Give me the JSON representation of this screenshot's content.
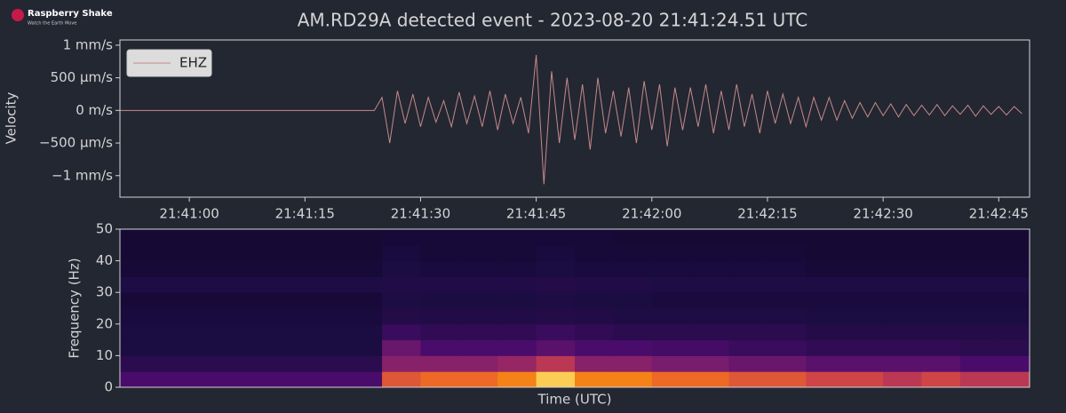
{
  "logo": {
    "name": "Raspberry Shake",
    "tagline": "Watch the Earth Move"
  },
  "chart_data": [
    {
      "type": "line",
      "title": "AM.RD29A detected event - 2023-08-20 21:41:24.51 UTC",
      "y_label": "Velocity",
      "legend": "upper left",
      "xlim": [
        "21:40:51",
        "21:42:49"
      ],
      "xticks": [
        "21:41:00",
        "21:41:15",
        "21:41:30",
        "21:41:45",
        "21:42:00",
        "21:42:15",
        "21:42:30",
        "21:42:45"
      ],
      "ylim": [
        -1330,
        1080
      ],
      "yticks": [
        {
          "value": 1000,
          "label": "1 mm/s"
        },
        {
          "value": 500,
          "label": "500 µm/s"
        },
        {
          "value": 0,
          "label": "0 m/s"
        },
        {
          "value": -500,
          "label": "−500 µm/s"
        },
        {
          "value": -1000,
          "label": "−1 mm/s"
        }
      ],
      "x": [
        "21:40:51",
        "21:40:52",
        "21:40:53",
        "21:40:54",
        "21:40:55",
        "21:40:56",
        "21:40:57",
        "21:40:58",
        "21:40:59",
        "21:41:00",
        "21:41:01",
        "21:41:02",
        "21:41:03",
        "21:41:04",
        "21:41:05",
        "21:41:06",
        "21:41:07",
        "21:41:08",
        "21:41:09",
        "21:41:10",
        "21:41:11",
        "21:41:12",
        "21:41:13",
        "21:41:14",
        "21:41:15",
        "21:41:16",
        "21:41:17",
        "21:41:18",
        "21:41:19",
        "21:41:20",
        "21:41:21",
        "21:41:22",
        "21:41:23",
        "21:41:24",
        "21:41:25",
        "21:41:26",
        "21:41:27",
        "21:41:28",
        "21:41:29",
        "21:41:30",
        "21:41:31",
        "21:41:32",
        "21:41:33",
        "21:41:34",
        "21:41:35",
        "21:41:36",
        "21:41:37",
        "21:41:38",
        "21:41:39",
        "21:41:40",
        "21:41:41",
        "21:41:42",
        "21:41:43",
        "21:41:44",
        "21:41:45",
        "21:41:46",
        "21:41:47",
        "21:41:48",
        "21:41:49",
        "21:41:50",
        "21:41:51",
        "21:41:52",
        "21:41:53",
        "21:41:54",
        "21:41:55",
        "21:41:56",
        "21:41:57",
        "21:41:58",
        "21:41:59",
        "21:42:00",
        "21:42:01",
        "21:42:02",
        "21:42:03",
        "21:42:04",
        "21:42:05",
        "21:42:06",
        "21:42:07",
        "21:42:08",
        "21:42:09",
        "21:42:10",
        "21:42:11",
        "21:42:12",
        "21:42:13",
        "21:42:14",
        "21:42:15",
        "21:42:16",
        "21:42:17",
        "21:42:18",
        "21:42:19",
        "21:42:20",
        "21:42:21",
        "21:42:22",
        "21:42:23",
        "21:42:24",
        "21:42:25",
        "21:42:26",
        "21:42:27",
        "21:42:28",
        "21:42:29",
        "21:42:30",
        "21:42:31",
        "21:42:32",
        "21:42:33",
        "21:42:34",
        "21:42:35",
        "21:42:36",
        "21:42:37",
        "21:42:38",
        "21:42:39",
        "21:42:40",
        "21:42:41",
        "21:42:42",
        "21:42:43",
        "21:42:44",
        "21:42:45",
        "21:42:46",
        "21:42:47",
        "21:42:48"
      ],
      "series": [
        {
          "name": "EHZ",
          "color": "#c48a8a",
          "values": [
            0,
            0,
            0,
            0,
            0,
            0,
            0,
            0,
            0,
            0,
            0,
            0,
            0,
            0,
            0,
            0,
            0,
            0,
            0,
            0,
            0,
            0,
            0,
            0,
            0,
            0,
            0,
            0,
            0,
            0,
            0,
            0,
            0,
            0,
            200,
            -500,
            300,
            -200,
            250,
            -250,
            200,
            -180,
            150,
            -250,
            280,
            -200,
            220,
            -250,
            300,
            -300,
            250,
            -200,
            200,
            -350,
            850,
            -1130,
            600,
            -500,
            500,
            -450,
            400,
            -600,
            500,
            -350,
            300,
            -400,
            350,
            -500,
            450,
            -300,
            400,
            -550,
            350,
            -300,
            350,
            -250,
            400,
            -350,
            300,
            -300,
            400,
            -250,
            250,
            -350,
            300,
            -200,
            250,
            -200,
            200,
            -250,
            200,
            -150,
            200,
            -150,
            150,
            -120,
            120,
            -100,
            120,
            -80,
            100,
            -100,
            90,
            -80,
            80,
            -70,
            90,
            -80,
            70,
            -60,
            80,
            -90,
            70,
            -60,
            60,
            -70,
            60,
            -50
          ]
        }
      ]
    },
    {
      "type": "spectrogram",
      "x_label": "Time (UTC)",
      "y_label": "Frequency (Hz)",
      "colormap": "inferno",
      "xlim": [
        "21:40:51",
        "21:42:49"
      ],
      "ylim": [
        0,
        50
      ],
      "yticks": [
        0,
        10,
        20,
        30,
        40,
        50
      ],
      "xbins": [
        "21:40:50",
        "21:40:55",
        "21:41:00",
        "21:41:05",
        "21:41:10",
        "21:41:15",
        "21:41:20",
        "21:41:25",
        "21:41:30",
        "21:41:35",
        "21:41:40",
        "21:41:45",
        "21:41:50",
        "21:41:55",
        "21:42:00",
        "21:42:05",
        "21:42:10",
        "21:42:15",
        "21:42:20",
        "21:42:25",
        "21:42:30",
        "21:42:35",
        "21:42:40",
        "21:42:45",
        "21:42:50"
      ],
      "ybins": [
        0,
        5,
        10,
        15,
        20,
        25,
        30,
        35,
        40,
        45,
        50
      ],
      "z": [
        [
          0.3,
          0.3,
          0.3,
          0.3,
          0.3,
          0.3,
          0.3,
          0.75,
          0.8,
          0.8,
          0.85,
          0.95,
          0.85,
          0.85,
          0.8,
          0.8,
          0.75,
          0.75,
          0.7,
          0.7,
          0.65,
          0.7,
          0.65,
          0.65
        ],
        [
          0.2,
          0.2,
          0.2,
          0.2,
          0.2,
          0.2,
          0.2,
          0.5,
          0.5,
          0.5,
          0.55,
          0.65,
          0.5,
          0.5,
          0.45,
          0.45,
          0.4,
          0.4,
          0.35,
          0.35,
          0.35,
          0.35,
          0.3,
          0.3
        ],
        [
          0.15,
          0.15,
          0.15,
          0.15,
          0.15,
          0.15,
          0.15,
          0.4,
          0.3,
          0.3,
          0.3,
          0.35,
          0.3,
          0.3,
          0.28,
          0.28,
          0.25,
          0.25,
          0.22,
          0.22,
          0.22,
          0.22,
          0.2,
          0.2
        ],
        [
          0.15,
          0.15,
          0.15,
          0.15,
          0.15,
          0.15,
          0.15,
          0.25,
          0.22,
          0.22,
          0.22,
          0.25,
          0.22,
          0.2,
          0.2,
          0.2,
          0.2,
          0.2,
          0.18,
          0.18,
          0.18,
          0.18,
          0.18,
          0.18
        ],
        [
          0.14,
          0.14,
          0.14,
          0.14,
          0.14,
          0.14,
          0.14,
          0.18,
          0.17,
          0.17,
          0.17,
          0.18,
          0.17,
          0.16,
          0.16,
          0.16,
          0.16,
          0.16,
          0.15,
          0.15,
          0.15,
          0.15,
          0.15,
          0.15
        ],
        [
          0.13,
          0.13,
          0.13,
          0.13,
          0.13,
          0.13,
          0.13,
          0.16,
          0.15,
          0.15,
          0.15,
          0.16,
          0.15,
          0.15,
          0.14,
          0.14,
          0.14,
          0.14,
          0.14,
          0.14,
          0.14,
          0.14,
          0.14,
          0.14
        ],
        [
          0.16,
          0.16,
          0.16,
          0.16,
          0.16,
          0.16,
          0.16,
          0.17,
          0.17,
          0.17,
          0.17,
          0.18,
          0.17,
          0.17,
          0.16,
          0.16,
          0.16,
          0.16,
          0.16,
          0.16,
          0.16,
          0.16,
          0.16,
          0.16
        ],
        [
          0.13,
          0.13,
          0.13,
          0.13,
          0.13,
          0.13,
          0.13,
          0.15,
          0.14,
          0.14,
          0.14,
          0.15,
          0.14,
          0.14,
          0.14,
          0.14,
          0.14,
          0.14,
          0.13,
          0.13,
          0.13,
          0.13,
          0.13,
          0.13
        ],
        [
          0.12,
          0.12,
          0.12,
          0.12,
          0.12,
          0.12,
          0.12,
          0.14,
          0.13,
          0.13,
          0.13,
          0.14,
          0.13,
          0.13,
          0.13,
          0.13,
          0.13,
          0.13,
          0.12,
          0.12,
          0.12,
          0.12,
          0.12,
          0.12
        ],
        [
          0.12,
          0.12,
          0.12,
          0.12,
          0.12,
          0.12,
          0.12,
          0.13,
          0.13,
          0.13,
          0.13,
          0.13,
          0.13,
          0.12,
          0.12,
          0.12,
          0.12,
          0.12,
          0.12,
          0.12,
          0.12,
          0.12,
          0.12,
          0.12
        ]
      ]
    }
  ]
}
